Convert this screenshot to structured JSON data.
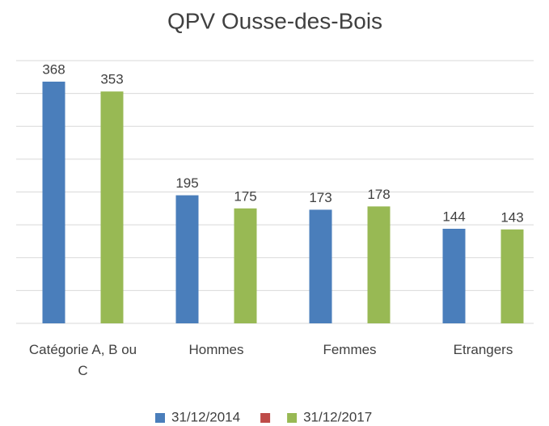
{
  "chart_data": {
    "type": "bar",
    "title": "QPV Ousse-des-Bois",
    "categories": [
      "Catégorie A, B ou C",
      "Hommes",
      "Femmes",
      "Etrangers"
    ],
    "series": [
      {
        "name": "31/12/2014",
        "color": "#4a7ebb",
        "values": [
          368,
          195,
          173,
          144
        ]
      },
      {
        "name": null,
        "color": "#be4b48",
        "values": [
          null,
          null,
          null,
          null
        ]
      },
      {
        "name": "31/12/2017",
        "color": "#98b954",
        "values": [
          353,
          175,
          178,
          143
        ]
      }
    ],
    "ylim": [
      0,
      400
    ],
    "yticks": [
      0,
      50,
      100,
      150,
      200,
      250,
      300,
      350,
      400
    ],
    "grid": true,
    "legend": "bottom"
  }
}
